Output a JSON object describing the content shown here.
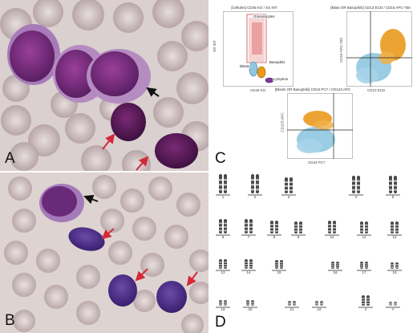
{
  "panels": {
    "a": {
      "letter": "A"
    },
    "b": {
      "letter": "B"
    },
    "c": {
      "letter": "C"
    },
    "d": {
      "letter": "D"
    }
  },
  "flow": {
    "plot1": {
      "title": "[Cellules] CD45 KO / SS INT",
      "xlabel": "CD45 KO",
      "ylabel": "SS INT",
      "gates": {
        "granulocytes": "Granulocytes",
        "blasts": "Blasts",
        "basophils": "Basophils",
        "lymphos": "Lymphos"
      }
    },
    "plot2": {
      "title": "[Blast OR Basophils] CD13 ECD / CD16 APC-750",
      "xlabel": "CD13 ECD",
      "ylabel": "CD16 APC-750"
    },
    "plot3": {
      "title": "[Blasts OR Basophils] CD34 PC7 / CD123 APC",
      "xlabel": "CD34 PC7",
      "ylabel": "CD123 APC"
    },
    "colors": {
      "orange": "#e99a1e",
      "blue": "#8fc7e0",
      "red": "#e05050",
      "purple": "#7a3a98"
    }
  },
  "karyotype": {
    "row1": [
      "1",
      "2",
      "3",
      "4",
      "5"
    ],
    "row2": [
      "6",
      "7",
      "8",
      "9",
      "10",
      "11",
      "12"
    ],
    "row3": [
      "13",
      "14",
      "15",
      "16",
      "17",
      "18"
    ],
    "row4": [
      "19",
      "20",
      "21",
      "22",
      "X",
      "Y"
    ]
  }
}
